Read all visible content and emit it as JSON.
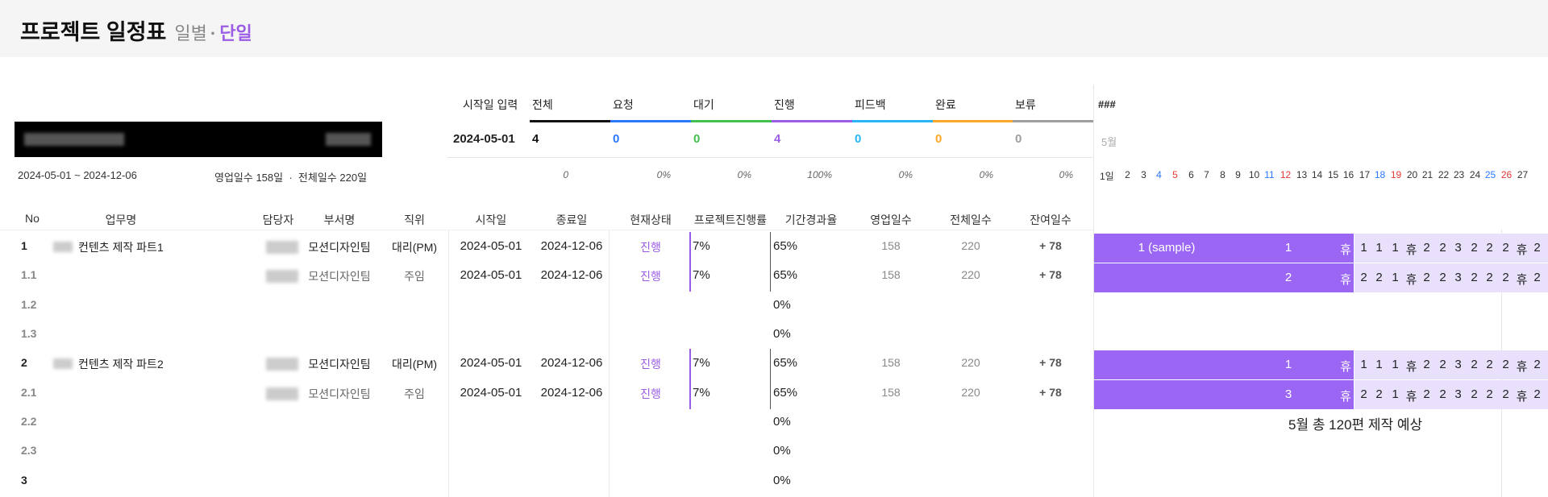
{
  "header": {
    "title": "프로젝트 일정표",
    "mode1": "일별",
    "separator": "·",
    "mode2": "단일"
  },
  "project": {
    "date_range": "2024-05-01 ~ 2024-12-06",
    "business_days": "영업일수 158일",
    "separator": "·",
    "total_days": "전체일수 220일"
  },
  "summary": {
    "start_label": "시작일 입력",
    "start_value": "2024-05-01",
    "items": [
      {
        "label": "전체",
        "value": "4",
        "pct": "0",
        "color": "#111111"
      },
      {
        "label": "요청",
        "value": "0",
        "pct": "0%",
        "color": "#2979ff"
      },
      {
        "label": "대기",
        "value": "0",
        "pct": "0%",
        "color": "#43c04f"
      },
      {
        "label": "진행",
        "value": "4",
        "pct": "100%",
        "color": "#9b5de5"
      },
      {
        "label": "피드백",
        "value": "0",
        "pct": "0%",
        "color": "#29b6f6"
      },
      {
        "label": "완료",
        "value": "0",
        "pct": "0%",
        "color": "#ffa726"
      },
      {
        "label": "보류",
        "value": "0",
        "pct": "0%",
        "color": "#9e9e9e"
      }
    ]
  },
  "gantt": {
    "hash": "###",
    "month": "5월",
    "days": [
      {
        "d": "1일",
        "c": "#333333"
      },
      {
        "d": "2",
        "c": "#333333"
      },
      {
        "d": "3",
        "c": "#333333"
      },
      {
        "d": "4",
        "c": "#2979ff"
      },
      {
        "d": "5",
        "c": "#e53935"
      },
      {
        "d": "6",
        "c": "#333333"
      },
      {
        "d": "7",
        "c": "#333333"
      },
      {
        "d": "8",
        "c": "#333333"
      },
      {
        "d": "9",
        "c": "#333333"
      },
      {
        "d": "10",
        "c": "#333333"
      },
      {
        "d": "11",
        "c": "#2979ff"
      },
      {
        "d": "12",
        "c": "#e53935"
      },
      {
        "d": "13",
        "c": "#333333"
      },
      {
        "d": "14",
        "c": "#333333"
      },
      {
        "d": "15",
        "c": "#333333"
      },
      {
        "d": "16",
        "c": "#333333"
      },
      {
        "d": "17",
        "c": "#333333"
      },
      {
        "d": "18",
        "c": "#2979ff"
      },
      {
        "d": "19",
        "c": "#e53935"
      },
      {
        "d": "20",
        "c": "#333333"
      },
      {
        "d": "21",
        "c": "#333333"
      },
      {
        "d": "22",
        "c": "#333333"
      },
      {
        "d": "23",
        "c": "#333333"
      },
      {
        "d": "24",
        "c": "#333333"
      },
      {
        "d": "25",
        "c": "#2979ff"
      },
      {
        "d": "26",
        "c": "#e53935"
      },
      {
        "d": "27",
        "c": "#333333"
      }
    ],
    "rows": [
      {
        "cells": [
          "1 (sample)",
          "1",
          "휴",
          "1",
          "1",
          "1",
          "휴",
          "2",
          "2",
          "3",
          "2",
          "2",
          "2",
          "휴",
          "2"
        ]
      },
      {
        "cells": [
          "",
          "2",
          "휴",
          "2",
          "2",
          "1",
          "휴",
          "2",
          "2",
          "3",
          "2",
          "2",
          "2",
          "휴",
          "2"
        ]
      },
      {
        "cells": [
          "",
          "1",
          "휴",
          "1",
          "1",
          "1",
          "휴",
          "2",
          "2",
          "3",
          "2",
          "2",
          "2",
          "휴",
          "2"
        ]
      },
      {
        "cells": [
          "",
          "3",
          "휴",
          "2",
          "2",
          "1",
          "휴",
          "2",
          "2",
          "3",
          "2",
          "2",
          "2",
          "휴",
          "2"
        ]
      }
    ],
    "footer": "5월 총 120편 제작 예상"
  },
  "table": {
    "headers": [
      "No",
      "업무명",
      "담당자",
      "부서명",
      "직위",
      "시작일",
      "종료일",
      "현재상태",
      "프로젝트진행률",
      "기간경과율",
      "영업일수",
      "전체일수",
      "잔여일수"
    ],
    "rows": [
      {
        "no": "1",
        "task": "컨텐츠 제작 파트1",
        "dept": "모션디자인팀",
        "pos": "대리(PM)",
        "start": "2024-05-01",
        "end": "2024-12-06",
        "status": "진행",
        "prog": "7%",
        "elapsed": "65%",
        "biz": "158",
        "total": "220",
        "remain": "+ 78",
        "main": true
      },
      {
        "no": "1.1",
        "task": "",
        "dept": "모션디자인팀",
        "pos": "주임",
        "start": "2024-05-01",
        "end": "2024-12-06",
        "status": "진행",
        "prog": "7%",
        "elapsed": "65%",
        "biz": "158",
        "total": "220",
        "remain": "+ 78",
        "main": false
      },
      {
        "no": "1.2",
        "task": "",
        "dept": "",
        "pos": "",
        "start": "",
        "end": "",
        "status": "",
        "prog": "",
        "elapsed": "0%",
        "biz": "",
        "total": "",
        "remain": "",
        "main": false
      },
      {
        "no": "1.3",
        "task": "",
        "dept": "",
        "pos": "",
        "start": "",
        "end": "",
        "status": "",
        "prog": "",
        "elapsed": "0%",
        "biz": "",
        "total": "",
        "remain": "",
        "main": false
      },
      {
        "no": "2",
        "task": "컨텐츠 제작 파트2",
        "dept": "모션디자인팀",
        "pos": "대리(PM)",
        "start": "2024-05-01",
        "end": "2024-12-06",
        "status": "진행",
        "prog": "7%",
        "elapsed": "65%",
        "biz": "158",
        "total": "220",
        "remain": "+ 78",
        "main": true
      },
      {
        "no": "2.1",
        "task": "",
        "dept": "모션디자인팀",
        "pos": "주임",
        "start": "2024-05-01",
        "end": "2024-12-06",
        "status": "진행",
        "prog": "7%",
        "elapsed": "65%",
        "biz": "158",
        "total": "220",
        "remain": "+ 78",
        "main": false
      },
      {
        "no": "2.2",
        "task": "",
        "dept": "",
        "pos": "",
        "start": "",
        "end": "",
        "status": "",
        "prog": "",
        "elapsed": "0%",
        "biz": "",
        "total": "",
        "remain": "",
        "main": false
      },
      {
        "no": "2.3",
        "task": "",
        "dept": "",
        "pos": "",
        "start": "",
        "end": "",
        "status": "",
        "prog": "",
        "elapsed": "0%",
        "biz": "",
        "total": "",
        "remain": "",
        "main": false
      },
      {
        "no": "3",
        "task": "",
        "dept": "",
        "pos": "",
        "start": "",
        "end": "",
        "status": "",
        "prog": "",
        "elapsed": "0%",
        "biz": "",
        "total": "",
        "remain": "",
        "main": true
      }
    ]
  }
}
